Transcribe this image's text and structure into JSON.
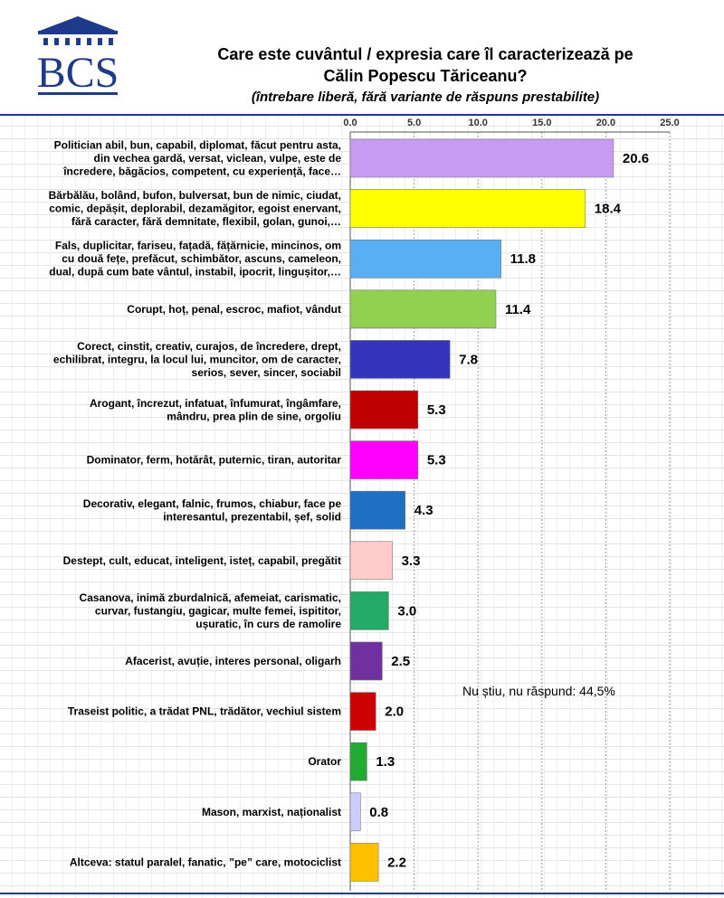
{
  "title_line1": "Care este cuvântul / expresia care îl caracterizează pe",
  "title_line2": "Călin Popescu Tăriceanu?",
  "subtitle": "(întrebare liberă, fără variante de răspuns prestabilite)",
  "logo_text": "BCS",
  "note": "Nu știu, nu răspund: 44,5%",
  "colors": {
    "header_rule": "#1f3a8a"
  },
  "chart_data": {
    "type": "bar",
    "orientation": "horizontal",
    "xlim": [
      0,
      25
    ],
    "ticks": [
      "0.0",
      "5.0",
      "10.0",
      "15.0",
      "20.0",
      "25.0"
    ],
    "tick_values": [
      0,
      5,
      10,
      15,
      20,
      25
    ],
    "grid": true,
    "categories": [
      [
        "Politician abil, bun, capabil, diplomat, făcut pentru asta,",
        "din vechea gardă, versat, viclean, vulpe, este de",
        "încredere, băgăcios, competent, cu experiență, face…"
      ],
      [
        "Bărbălău, bolând, bufon, bulversat, bun de nimic, ciudat,",
        "comic, depășit, deplorabil, dezamăgitor, egoist enervant,",
        "fără caracter, fără demnitate, flexibil, golan, gunoi,…"
      ],
      [
        "Fals, duplicitar, fariseu, fațadă, fățărnicie, mincinos, om",
        "cu două fețe, prefăcut, schimbător, ascuns, cameleon,",
        "dual, după cum bate vântul, instabil, ipocrit, lingușitor,…"
      ],
      [
        "Corupt, hoț, penal, escroc, mafiot, vândut"
      ],
      [
        "Corect, cinstit, creativ, curajos, de încredere, drept,",
        "echilibrat, integru, la locul lui, muncitor, om de caracter,",
        "serios, sever, sincer, sociabil"
      ],
      [
        "Arogant, încrezut, infatuat, înfumurat, îngâmfare,",
        "mândru, prea plin de sine, orgoliu"
      ],
      [
        "Dominator, ferm, hotărât, puternic, tiran, autoritar"
      ],
      [
        "Decorativ, elegant, falnic, frumos, chiabur, face pe",
        "interesantul, prezentabil, șef, solid"
      ],
      [
        "Destept, cult, educat, inteligent, isteț, capabil, pregătit"
      ],
      [
        "Casanova, inimă zburdalnică, afemeiat, carismatic,",
        "curvar, fustangiu, gagicar, multe femei, ispititor,",
        "ușuratic, în curs de ramolire"
      ],
      [
        "Afacerist, avuție, interes personal, oligarh"
      ],
      [
        "Traseist politic, a trădat PNL, trădător, vechiul sistem"
      ],
      [
        "Orator"
      ],
      [
        "Mason, marxist, naționalist"
      ],
      [
        "Altceva: statul paralel, fanatic, ”pe” care, motociclist"
      ]
    ],
    "values": [
      20.6,
      18.4,
      11.8,
      11.4,
      7.8,
      5.3,
      5.3,
      4.3,
      3.3,
      3.0,
      2.5,
      2.0,
      1.3,
      0.8,
      2.2
    ],
    "value_labels": [
      "20.6",
      "18.4",
      "11.8",
      "11.4",
      "7.8",
      "5.3",
      "5.3",
      "4.3",
      "3.3",
      "3.0",
      "2.5",
      "2.0",
      "1.3",
      "0.8",
      "2.2"
    ],
    "bar_colors": [
      "#c89bf2",
      "#ffff00",
      "#5aaef2",
      "#92d050",
      "#3333bb",
      "#c00000",
      "#ff00ff",
      "#1f6fc4",
      "#ffcccc",
      "#22aa66",
      "#7030a0",
      "#cc0000",
      "#22aa33",
      "#ccccff",
      "#ffc000"
    ]
  }
}
